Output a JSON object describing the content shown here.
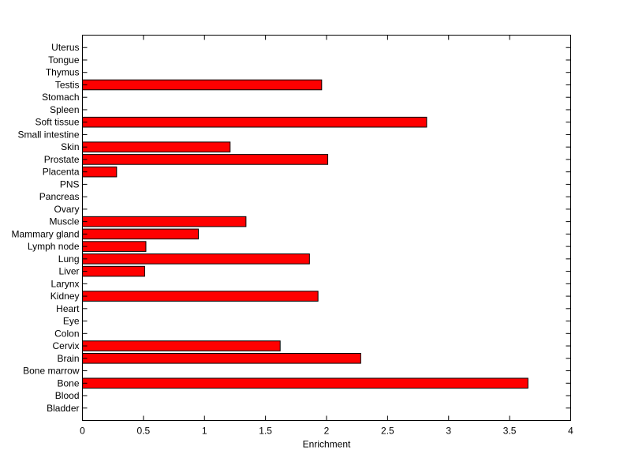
{
  "chart_data": {
    "type": "bar",
    "orientation": "horizontal",
    "title": "",
    "xlabel": "Enrichment",
    "ylabel": "",
    "xlim": [
      0,
      4
    ],
    "xticks": [
      0,
      0.5,
      1,
      1.5,
      2,
      2.5,
      3,
      3.5,
      4
    ],
    "xtick_labels": [
      "0",
      "0.5",
      "1",
      "1.5",
      "2",
      "2.5",
      "3",
      "3.5",
      "4"
    ],
    "grid": false,
    "legend": "none",
    "bar_color": "#ff0000",
    "bar_edge_color": "#000000",
    "categories": [
      "Bladder",
      "Blood",
      "Bone",
      "Bone marrow",
      "Brain",
      "Cervix",
      "Colon",
      "Eye",
      "Heart",
      "Kidney",
      "Larynx",
      "Liver",
      "Lung",
      "Lymph node",
      "Mammary gland",
      "Muscle",
      "Ovary",
      "Pancreas",
      "PNS",
      "Placenta",
      "Prostate",
      "Skin",
      "Small intestine",
      "Soft tissue",
      "Spleen",
      "Stomach",
      "Testis",
      "Thymus",
      "Tongue",
      "Uterus"
    ],
    "values": [
      0,
      0,
      3.65,
      0,
      2.28,
      1.62,
      0,
      0,
      0,
      1.93,
      0,
      0.51,
      1.86,
      0.52,
      0.95,
      1.34,
      0,
      0,
      0,
      0.28,
      2.01,
      1.21,
      0,
      2.82,
      0,
      0,
      1.96,
      0,
      0,
      0
    ]
  }
}
